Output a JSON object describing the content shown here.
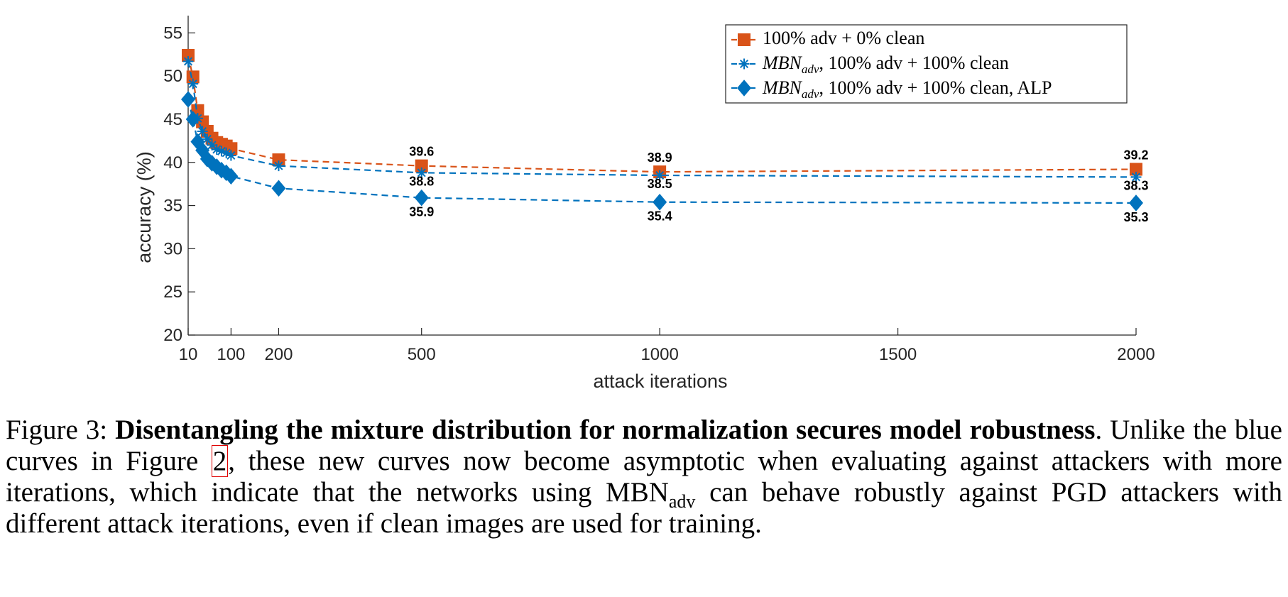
{
  "chart_data": {
    "type": "line",
    "xlabel": "attack iterations",
    "ylabel": "accuracy (%)",
    "xlim": [
      10,
      2000
    ],
    "ylim": [
      20,
      57
    ],
    "xticks": [
      10,
      100,
      200,
      500,
      1000,
      1500,
      2000
    ],
    "yticks": [
      20,
      25,
      30,
      35,
      40,
      45,
      50,
      55
    ],
    "legend_position": "top-right",
    "grid": false,
    "x": [
      10,
      20,
      30,
      40,
      50,
      60,
      70,
      80,
      90,
      100,
      200,
      500,
      1000,
      2000
    ],
    "series": [
      {
        "name": "100% adv + 0% clean",
        "color": "#D95319",
        "marker": "square",
        "values": [
          52.4,
          49.9,
          46.0,
          44.7,
          43.6,
          42.8,
          42.3,
          42.1,
          41.9,
          41.6,
          40.3,
          39.6,
          38.9,
          39.2
        ]
      },
      {
        "name": "MBN_adv, 100% adv + 100% clean",
        "color": "#0072BD",
        "marker": "asterisk",
        "values": [
          51.7,
          49.1,
          45.1,
          43.6,
          42.7,
          42.0,
          41.5,
          41.3,
          41.1,
          40.8,
          39.6,
          38.8,
          38.5,
          38.3
        ]
      },
      {
        "name": "MBN_adv, 100% adv + 100% clean, ALP",
        "color": "#0072BD",
        "marker": "diamond",
        "values": [
          47.3,
          45.0,
          42.4,
          41.4,
          40.4,
          39.9,
          39.5,
          39.1,
          38.8,
          38.4,
          37.0,
          35.9,
          35.4,
          35.3
        ]
      }
    ],
    "data_labels": [
      {
        "series": 0,
        "x": 500,
        "text": "39.6",
        "pos": "above"
      },
      {
        "series": 1,
        "x": 500,
        "text": "38.8",
        "pos": "above-near"
      },
      {
        "series": 2,
        "x": 500,
        "text": "35.9",
        "pos": "below"
      },
      {
        "series": 0,
        "x": 1000,
        "text": "38.9",
        "pos": "above"
      },
      {
        "series": 1,
        "x": 1000,
        "text": "38.5",
        "pos": "above-near"
      },
      {
        "series": 2,
        "x": 1000,
        "text": "35.4",
        "pos": "below"
      },
      {
        "series": 0,
        "x": 2000,
        "text": "39.2",
        "pos": "above"
      },
      {
        "series": 1,
        "x": 2000,
        "text": "38.3",
        "pos": "above-near"
      },
      {
        "series": 2,
        "x": 2000,
        "text": "35.3",
        "pos": "below"
      }
    ]
  },
  "legend": {
    "entry0_text": "100% adv + 0% clean",
    "entry1_math_main": "MBN",
    "entry1_math_sub": "adv",
    "entry1_rest": ", 100% adv + 100% clean",
    "entry2_math_main": "MBN",
    "entry2_math_sub": "adv",
    "entry2_rest": ", 100% adv + 100% clean, ALP"
  },
  "caption": {
    "fig_label": "Figure 3: ",
    "bold_title": "Disentangling the mixture distribution for normalization secures model robustness",
    "after_title": ".",
    "text1": " Unlike the blue curves in Figure ",
    "figure_ref": "2",
    "text2": ", these new curves now become asymptotic when evaluating against attackers with more iterations, which indicate that the networks using MBN",
    "sub": "adv",
    "text3": " can behave robustly against PGD attackers with different attack iterations, even if clean images are used for training."
  }
}
